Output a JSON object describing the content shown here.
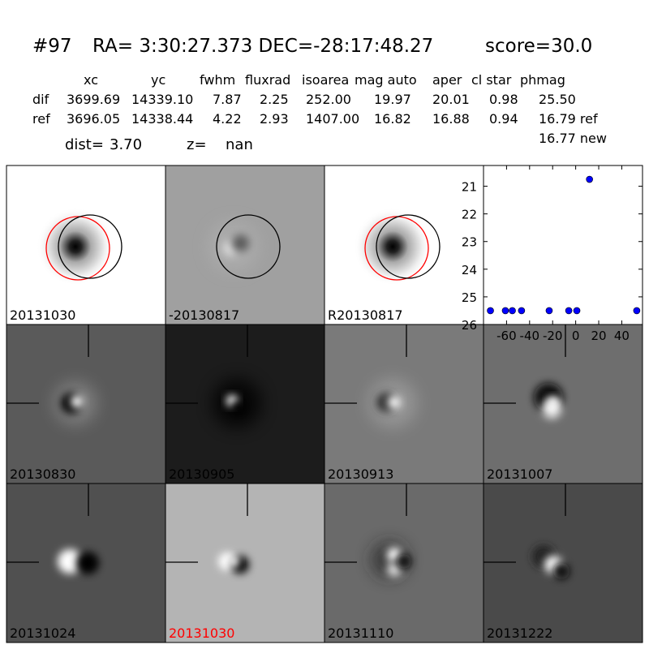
{
  "header": {
    "id": "#97",
    "coords": "RA= 3:30:27.373 DEC=-28:17:48.27",
    "score": "score=30.0"
  },
  "table": {
    "columns": [
      "xc",
      "yc",
      "fwhm",
      "fluxrad",
      "isoarea",
      "mag auto",
      "aper",
      "cl star",
      "phmag"
    ],
    "rows": [
      {
        "label": "dif",
        "cells": [
          "3699.69",
          "14339.10",
          "7.87",
          "2.25",
          "252.00",
          "19.97",
          "20.01",
          "0.98",
          "25.50"
        ]
      },
      {
        "label": "ref",
        "cells": [
          "3696.05",
          "14338.44",
          "4.22",
          "2.93",
          "1407.00",
          "16.82",
          "16.88",
          "0.94",
          "16.79 ref"
        ]
      }
    ],
    "extra": "16.77 new"
  },
  "summary": {
    "dist_label": "dist=",
    "dist": "3.70",
    "z_label": "z=",
    "z": "nan"
  },
  "panels": [
    {
      "label": "20131030"
    },
    {
      "label": "-20130817"
    },
    {
      "label": "R20130817"
    },
    {
      "label": "20130830"
    },
    {
      "label": "20130905"
    },
    {
      "label": "20130913"
    },
    {
      "label": "20131007"
    },
    {
      "label": "20131024"
    },
    {
      "label": "20131030",
      "label_color": "#ff0000"
    },
    {
      "label": "20131110"
    },
    {
      "label": "20131222"
    }
  ],
  "chart_data": {
    "type": "scatter",
    "x": [
      -74,
      -61,
      -55,
      -47,
      -23,
      -6,
      1,
      12,
      53
    ],
    "values": [
      25.5,
      25.5,
      25.5,
      25.5,
      25.5,
      25.5,
      25.5,
      20.75,
      25.5
    ],
    "color": "#0000ff",
    "xlim": [
      -80,
      58
    ],
    "ylim": [
      26,
      20.25
    ],
    "xticks": [
      -60,
      -40,
      -20,
      0,
      20,
      40
    ],
    "yticks": [
      21,
      22,
      23,
      24,
      25,
      26
    ]
  }
}
